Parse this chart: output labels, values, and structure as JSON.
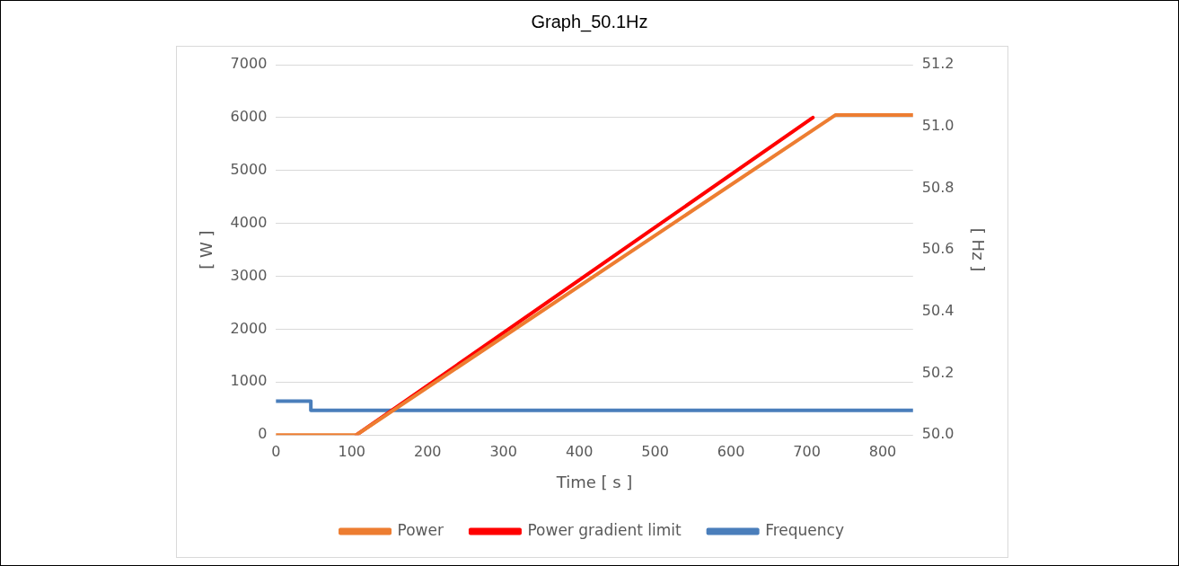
{
  "chart_data": {
    "type": "line",
    "title": "Graph_50.1Hz",
    "xlabel": "Time [ s ]",
    "ylabel": "[ W ]",
    "y2label": "[ Hz ]",
    "xlim": [
      0,
      840
    ],
    "xticks": [
      0,
      100,
      200,
      300,
      400,
      500,
      600,
      700,
      800
    ],
    "ylim": [
      0,
      7000
    ],
    "yticks": [
      0,
      1000,
      2000,
      3000,
      4000,
      5000,
      6000,
      7000
    ],
    "y2lim": [
      50.0,
      51.2
    ],
    "y2ticks": [
      {
        "value": 50.0,
        "label": "50.0"
      },
      {
        "value": 50.2,
        "label": "50.2"
      },
      {
        "value": 50.4,
        "label": "50.4"
      },
      {
        "value": 50.6,
        "label": "50.6"
      },
      {
        "value": 50.8,
        "label": "50.8"
      },
      {
        "value": 51.0,
        "label": "51.0"
      },
      {
        "value": 51.2,
        "label": "51.2"
      }
    ],
    "grid": "y",
    "legend": "bottom",
    "marker": "none",
    "line_style": "solid",
    "series": [
      {
        "name": "Power",
        "color": "#ed7d31",
        "x": [
          0,
          106,
          738,
          840
        ],
        "values": [
          0,
          0,
          6050,
          6050
        ]
      },
      {
        "name": "Power gradient limit",
        "color": "#ff0000",
        "x": [
          106,
          708
        ],
        "values": [
          0,
          6000
        ]
      },
      {
        "name": "Frequency",
        "color": "#4a7ebb",
        "axis": "y2",
        "x": [
          0,
          46,
          46,
          840
        ],
        "values": [
          50.11,
          50.11,
          50.08,
          50.08
        ]
      }
    ]
  }
}
